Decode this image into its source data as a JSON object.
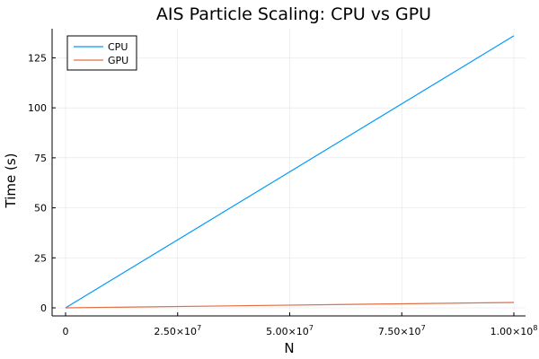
{
  "chart_data": {
    "type": "line",
    "title": "AIS Particle Scaling: CPU vs GPU",
    "xlabel": "N",
    "ylabel": "Time (s)",
    "xlim": [
      0,
      100000000
    ],
    "ylim": [
      0,
      140
    ],
    "x_ticks": [
      {
        "value": 0,
        "mantissa": "0",
        "exp": ""
      },
      {
        "value": 25000000,
        "mantissa": "2.50×10",
        "exp": "7"
      },
      {
        "value": 50000000,
        "mantissa": "5.00×10",
        "exp": "7"
      },
      {
        "value": 75000000,
        "mantissa": "7.50×10",
        "exp": "7"
      },
      {
        "value": 100000000,
        "mantissa": "1.00×10",
        "exp": "8"
      }
    ],
    "y_ticks": [
      0,
      25,
      50,
      75,
      100,
      125
    ],
    "grid": true,
    "legend_position": "top-left",
    "series": [
      {
        "name": "CPU",
        "color": "#009AFA",
        "x": [
          0,
          100000000
        ],
        "y": [
          0,
          136
        ]
      },
      {
        "name": "GPU",
        "color": "#E26F46",
        "x": [
          0,
          100000000
        ],
        "y": [
          0,
          2.7
        ]
      }
    ]
  }
}
